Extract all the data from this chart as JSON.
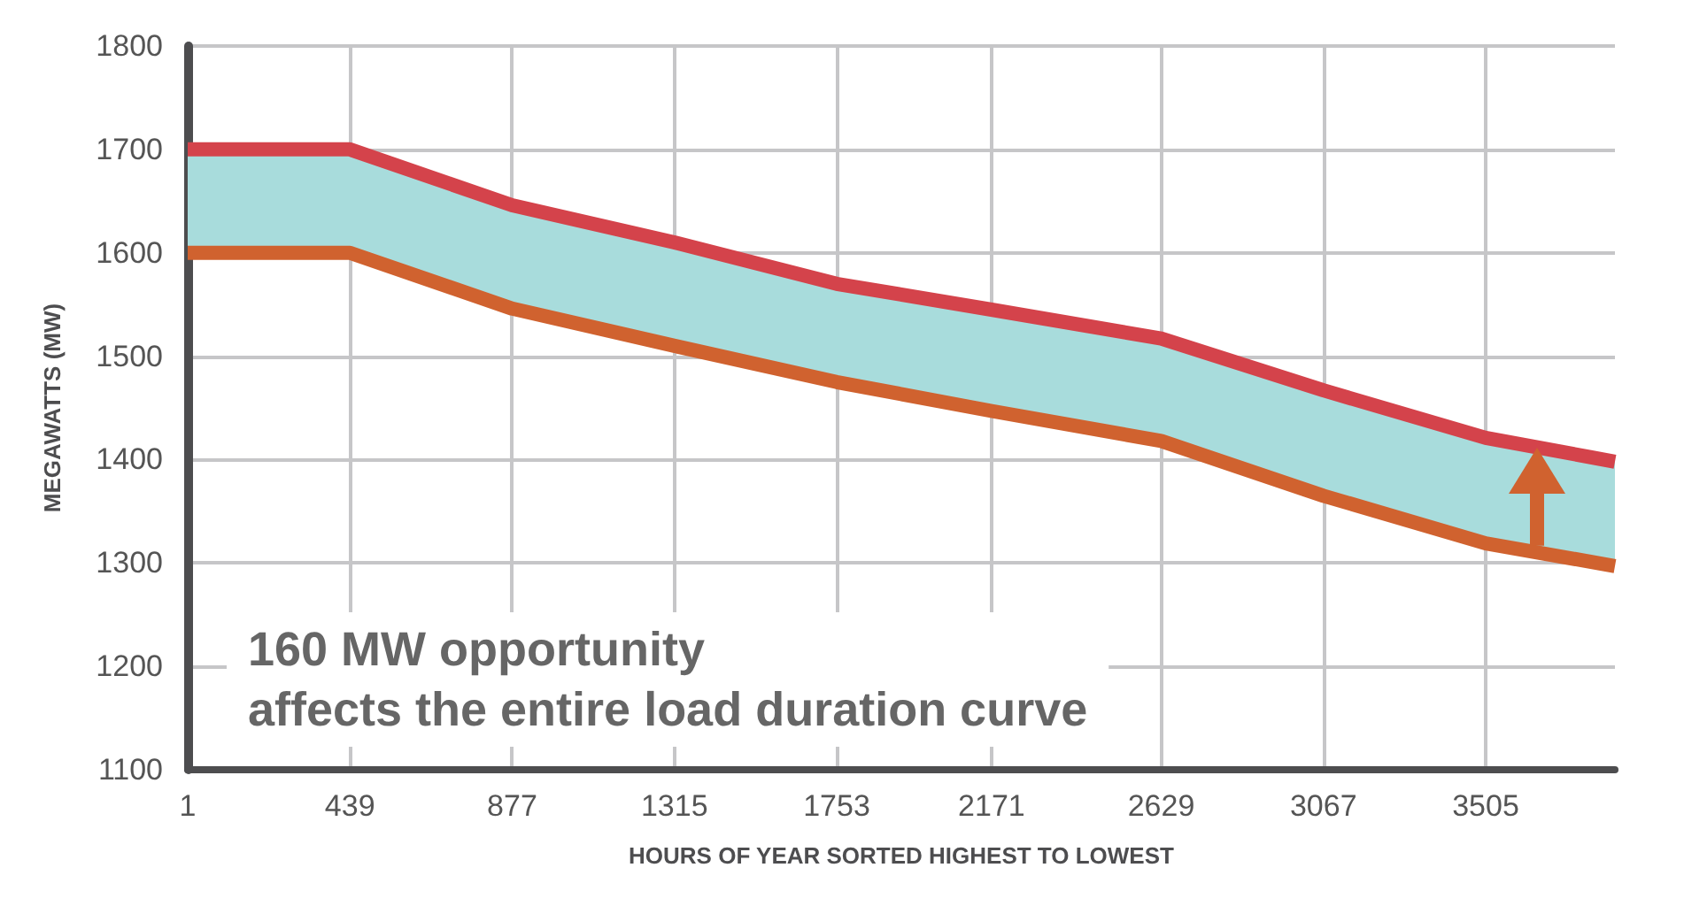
{
  "chart_data": {
    "type": "line",
    "xlabel": "HOURS OF YEAR SORTED HIGHEST TO LOWEST",
    "ylabel": "MEGAWATTS (MW)",
    "x": [
      1,
      439,
      877,
      1315,
      1753,
      2171,
      2629,
      3067,
      3505,
      3854
    ],
    "series": [
      {
        "color": "#d4434b",
        "values": [
          1700,
          1700,
          1646,
          1610,
          1570,
          1545,
          1517,
          1467,
          1421,
          1398
        ],
        "lower": [
          1600,
          1600,
          1546,
          1510,
          1475,
          1447,
          1418,
          1365,
          1319,
          1297
        ],
        "upper": [
          1700,
          1700,
          1646,
          1610,
          1570,
          1545,
          1517,
          1467,
          1421,
          1398
        ]
      },
      {
        "color": "#d0622f",
        "values": [
          1600,
          1600,
          1546,
          1510,
          1475,
          1447,
          1418,
          1365,
          1319,
          1297
        ]
      }
    ],
    "xlim": [
      1,
      3854
    ],
    "xticks": [
      1,
      439,
      877,
      1315,
      1753,
      2171,
      2629,
      3067,
      3505
    ],
    "ylim": [
      1100,
      1800
    ],
    "yticks": [
      1100,
      1200,
      1300,
      1400,
      1500,
      1600,
      1700,
      1800
    ],
    "annotations": [
      "160 MW opportunity\naffects the entire load duration curve"
    ],
    "grid": true,
    "marker": "none",
    "line_style": "solid"
  }
}
